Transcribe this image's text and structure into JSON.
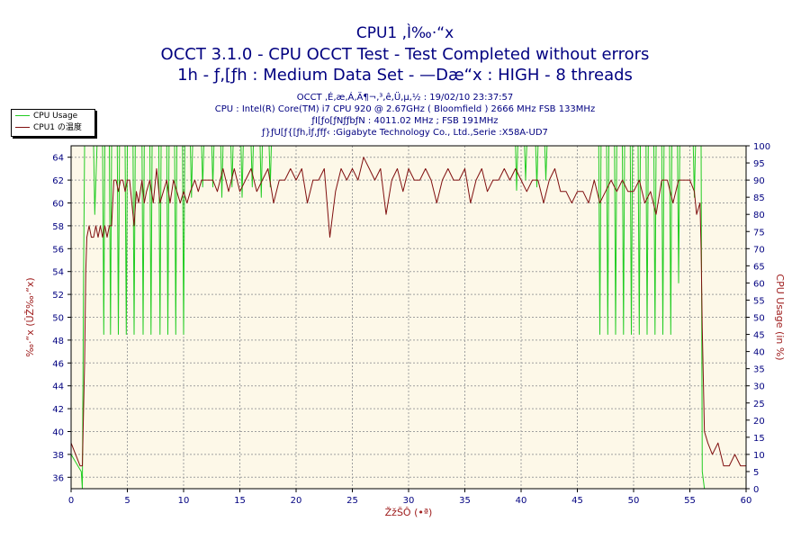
{
  "header": {
    "title": "CPU1 ,Ì‰·“x",
    "subtitle1": "OCCT 3.1.0 - CPU OCCT Test - Test Completed without errors",
    "subtitle2": "1h - ƒ‚[ƒh : Medium Data Set - —Dæ“x : HIGH - 8 threads"
  },
  "info": {
    "line1": "OCCT ‚É‚æ‚Á‚Ä¶¬‚³‚ê‚Ü‚µ‚½ : 19/02/10 23:37:57",
    "line2": "CPU : Intel(R) Core(TM) i7 CPU 920 @ 2.67GHz ( Bloomfield ) 2666 MHz FSB 133MHz",
    "line3": "ƒI[ƒo[ƒNƒƒbƒN : 4011.02 MHz ; FSB 191MHz",
    "line4": "ƒ}ƒU[ƒ{[ƒh‚Ìƒ‚ƒfƒ‹ :Gigabyte Technology Co., Ltd.,Serie :X58A-UD7"
  },
  "legend": {
    "usage_label": "CPU Usage",
    "temp_label": "CPU1 の温度"
  },
  "colors": {
    "usage": "#22cc22",
    "temp": "#801010",
    "plot_bg": "#fdf8e8",
    "grid": "#a0a0a0",
    "text": "#000080",
    "axis_label": "#a02020"
  },
  "chart_data": {
    "type": "line",
    "xlabel": "ŽžŠÔ (•ª)",
    "ylabel_left": "‰·“x (ÛŽ‰·“x)",
    "ylabel_right": "CPU Usage (in %)",
    "xlim": [
      0,
      60
    ],
    "ylim_left": [
      35,
      65
    ],
    "ylim_right": [
      0,
      100
    ],
    "x_ticks": [
      0,
      5,
      10,
      15,
      20,
      25,
      30,
      35,
      40,
      45,
      50,
      55,
      60
    ],
    "y_left_ticks": [
      36,
      38,
      40,
      42,
      44,
      46,
      48,
      50,
      52,
      54,
      56,
      58,
      60,
      62,
      64
    ],
    "y_right_ticks": [
      0,
      5,
      10,
      15,
      20,
      25,
      30,
      35,
      40,
      45,
      50,
      55,
      60,
      65,
      70,
      75,
      80,
      85,
      90,
      95,
      100
    ],
    "grid": true,
    "legend_position": "top-left",
    "series": [
      {
        "name": "CPU Usage",
        "axis": "right",
        "points": [
          [
            0,
            10
          ],
          [
            0.9,
            5
          ],
          [
            1.0,
            0
          ],
          [
            1.1,
            60
          ],
          [
            1.2,
            100
          ],
          [
            2.0,
            100
          ],
          [
            2.1,
            80
          ],
          [
            2.3,
            100
          ],
          [
            2.8,
            100
          ],
          [
            2.9,
            45
          ],
          [
            3.0,
            100
          ],
          [
            3.4,
            100
          ],
          [
            3.5,
            45
          ],
          [
            3.6,
            100
          ],
          [
            4.1,
            100
          ],
          [
            4.2,
            45
          ],
          [
            4.3,
            100
          ],
          [
            4.8,
            100
          ],
          [
            4.9,
            45
          ],
          [
            5.0,
            100
          ],
          [
            5.5,
            100
          ],
          [
            5.6,
            45
          ],
          [
            5.7,
            100
          ],
          [
            6.3,
            100
          ],
          [
            6.4,
            45
          ],
          [
            6.5,
            100
          ],
          [
            7.0,
            100
          ],
          [
            7.1,
            45
          ],
          [
            7.2,
            100
          ],
          [
            7.8,
            100
          ],
          [
            7.9,
            45
          ],
          [
            8.0,
            100
          ],
          [
            8.5,
            100
          ],
          [
            8.6,
            45
          ],
          [
            8.7,
            100
          ],
          [
            9.2,
            100
          ],
          [
            9.3,
            45
          ],
          [
            9.4,
            100
          ],
          [
            9.9,
            100
          ],
          [
            10.0,
            45
          ],
          [
            10.1,
            100
          ],
          [
            10.6,
            100
          ],
          [
            10.7,
            85
          ],
          [
            10.8,
            100
          ],
          [
            11.6,
            100
          ],
          [
            11.7,
            88
          ],
          [
            11.8,
            100
          ],
          [
            12.5,
            100
          ],
          [
            12.6,
            88
          ],
          [
            12.7,
            100
          ],
          [
            13.3,
            100
          ],
          [
            13.4,
            85
          ],
          [
            13.5,
            100
          ],
          [
            14.2,
            100
          ],
          [
            14.3,
            88
          ],
          [
            14.4,
            100
          ],
          [
            15.1,
            100
          ],
          [
            15.2,
            85
          ],
          [
            15.3,
            100
          ],
          [
            16.0,
            100
          ],
          [
            16.1,
            88
          ],
          [
            16.2,
            100
          ],
          [
            16.8,
            100
          ],
          [
            16.9,
            85
          ],
          [
            17.0,
            100
          ],
          [
            17.6,
            100
          ],
          [
            17.7,
            88
          ],
          [
            17.8,
            100
          ],
          [
            39.5,
            100
          ],
          [
            39.6,
            87
          ],
          [
            39.7,
            100
          ],
          [
            40.3,
            100
          ],
          [
            40.4,
            90
          ],
          [
            40.5,
            100
          ],
          [
            41.3,
            100
          ],
          [
            41.4,
            88
          ],
          [
            41.5,
            100
          ],
          [
            42.1,
            100
          ],
          [
            42.2,
            90
          ],
          [
            42.3,
            100
          ],
          [
            46.9,
            100
          ],
          [
            47.0,
            45
          ],
          [
            47.1,
            100
          ],
          [
            47.6,
            100
          ],
          [
            47.7,
            45
          ],
          [
            47.8,
            100
          ],
          [
            48.3,
            100
          ],
          [
            48.4,
            45
          ],
          [
            48.5,
            100
          ],
          [
            49.0,
            100
          ],
          [
            49.1,
            45
          ],
          [
            49.2,
            100
          ],
          [
            49.7,
            100
          ],
          [
            49.8,
            45
          ],
          [
            49.9,
            100
          ],
          [
            50.4,
            100
          ],
          [
            50.5,
            45
          ],
          [
            50.6,
            100
          ],
          [
            51.1,
            100
          ],
          [
            51.2,
            45
          ],
          [
            51.3,
            100
          ],
          [
            51.8,
            100
          ],
          [
            51.9,
            45
          ],
          [
            52.0,
            100
          ],
          [
            52.5,
            100
          ],
          [
            52.6,
            45
          ],
          [
            52.7,
            100
          ],
          [
            53.2,
            100
          ],
          [
            53.3,
            45
          ],
          [
            53.4,
            100
          ],
          [
            53.9,
            100
          ],
          [
            54.0,
            60
          ],
          [
            54.1,
            100
          ],
          [
            55.3,
            100
          ],
          [
            55.4,
            85
          ],
          [
            55.5,
            100
          ],
          [
            56.0,
            100
          ],
          [
            56.1,
            5
          ],
          [
            56.3,
            0
          ],
          [
            60,
            0
          ]
        ]
      },
      {
        "name": "CPU1 の温度",
        "axis": "left",
        "points": [
          [
            0,
            39
          ],
          [
            0.4,
            38
          ],
          [
            0.8,
            37
          ],
          [
            1.0,
            37
          ],
          [
            1.2,
            46
          ],
          [
            1.3,
            54
          ],
          [
            1.4,
            57
          ],
          [
            1.6,
            58
          ],
          [
            1.8,
            57
          ],
          [
            2.0,
            57
          ],
          [
            2.2,
            58
          ],
          [
            2.4,
            57
          ],
          [
            2.6,
            58
          ],
          [
            2.8,
            57
          ],
          [
            3.0,
            58
          ],
          [
            3.2,
            57
          ],
          [
            3.4,
            58
          ],
          [
            3.6,
            58
          ],
          [
            3.8,
            62
          ],
          [
            4.0,
            62
          ],
          [
            4.2,
            61
          ],
          [
            4.4,
            62
          ],
          [
            4.6,
            62
          ],
          [
            4.8,
            61
          ],
          [
            5.0,
            62
          ],
          [
            5.2,
            62
          ],
          [
            5.4,
            60
          ],
          [
            5.6,
            58
          ],
          [
            5.8,
            61
          ],
          [
            6.0,
            60
          ],
          [
            6.3,
            62
          ],
          [
            6.5,
            60
          ],
          [
            6.7,
            61
          ],
          [
            7.0,
            62
          ],
          [
            7.3,
            60
          ],
          [
            7.6,
            63
          ],
          [
            7.9,
            60
          ],
          [
            8.2,
            61
          ],
          [
            8.5,
            62
          ],
          [
            8.8,
            60
          ],
          [
            9.1,
            62
          ],
          [
            9.4,
            61
          ],
          [
            9.7,
            60
          ],
          [
            10.0,
            61
          ],
          [
            10.3,
            60
          ],
          [
            10.6,
            61
          ],
          [
            11.0,
            62
          ],
          [
            11.3,
            61
          ],
          [
            11.6,
            62
          ],
          [
            12.0,
            62
          ],
          [
            12.3,
            62
          ],
          [
            12.6,
            62
          ],
          [
            13.0,
            61
          ],
          [
            13.5,
            63
          ],
          [
            14.0,
            61
          ],
          [
            14.5,
            63
          ],
          [
            15.0,
            61
          ],
          [
            15.5,
            62
          ],
          [
            16.0,
            63
          ],
          [
            16.5,
            61
          ],
          [
            17.0,
            62
          ],
          [
            17.5,
            63
          ],
          [
            18.0,
            60
          ],
          [
            18.5,
            62
          ],
          [
            19.0,
            62
          ],
          [
            19.5,
            63
          ],
          [
            20.0,
            62
          ],
          [
            20.5,
            63
          ],
          [
            21.0,
            60
          ],
          [
            21.5,
            62
          ],
          [
            22.0,
            62
          ],
          [
            22.5,
            63
          ],
          [
            23.0,
            57
          ],
          [
            23.5,
            61
          ],
          [
            24.0,
            63
          ],
          [
            24.5,
            62
          ],
          [
            25.0,
            63
          ],
          [
            25.5,
            62
          ],
          [
            26.0,
            64
          ],
          [
            26.5,
            63
          ],
          [
            27.0,
            62
          ],
          [
            27.5,
            63
          ],
          [
            28.0,
            59
          ],
          [
            28.5,
            62
          ],
          [
            29.0,
            63
          ],
          [
            29.5,
            61
          ],
          [
            30.0,
            63
          ],
          [
            30.5,
            62
          ],
          [
            31.0,
            62
          ],
          [
            31.5,
            63
          ],
          [
            32.0,
            62
          ],
          [
            32.5,
            60
          ],
          [
            33.0,
            62
          ],
          [
            33.5,
            63
          ],
          [
            34.0,
            62
          ],
          [
            34.5,
            62
          ],
          [
            35.0,
            63
          ],
          [
            35.5,
            60
          ],
          [
            36.0,
            62
          ],
          [
            36.5,
            63
          ],
          [
            37.0,
            61
          ],
          [
            37.5,
            62
          ],
          [
            38.0,
            62
          ],
          [
            38.5,
            63
          ],
          [
            39.0,
            62
          ],
          [
            39.5,
            63
          ],
          [
            40.0,
            62
          ],
          [
            40.5,
            61
          ],
          [
            41.0,
            62
          ],
          [
            41.5,
            62
          ],
          [
            42.0,
            60
          ],
          [
            42.5,
            62
          ],
          [
            43.0,
            63
          ],
          [
            43.5,
            61
          ],
          [
            44.0,
            61
          ],
          [
            44.5,
            60
          ],
          [
            45.0,
            61
          ],
          [
            45.5,
            61
          ],
          [
            46.0,
            60
          ],
          [
            46.5,
            62
          ],
          [
            47.0,
            60
          ],
          [
            47.5,
            61
          ],
          [
            48.0,
            62
          ],
          [
            48.5,
            61
          ],
          [
            49.0,
            62
          ],
          [
            49.5,
            61
          ],
          [
            50.0,
            61
          ],
          [
            50.5,
            62
          ],
          [
            51.0,
            60
          ],
          [
            51.5,
            61
          ],
          [
            52.0,
            59
          ],
          [
            52.5,
            62
          ],
          [
            53.0,
            62
          ],
          [
            53.5,
            60
          ],
          [
            54.0,
            62
          ],
          [
            54.5,
            62
          ],
          [
            55.0,
            62
          ],
          [
            55.4,
            61
          ],
          [
            55.6,
            59
          ],
          [
            55.9,
            60
          ],
          [
            56.0,
            56
          ],
          [
            56.1,
            49
          ],
          [
            56.3,
            40
          ],
          [
            56.6,
            39
          ],
          [
            57.0,
            38
          ],
          [
            57.5,
            39
          ],
          [
            58.0,
            37
          ],
          [
            58.5,
            37
          ],
          [
            59.0,
            38
          ],
          [
            59.5,
            37
          ],
          [
            60.0,
            37
          ]
        ]
      }
    ]
  }
}
